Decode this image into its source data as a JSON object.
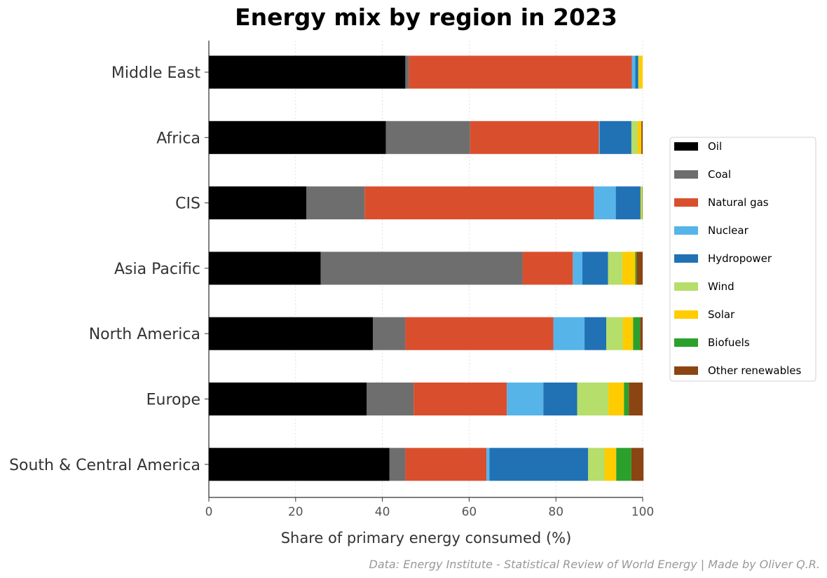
{
  "chart_data": {
    "type": "bar",
    "orientation": "horizontal",
    "stacked": true,
    "title": "Energy mix by region in 2023",
    "xlabel": "Share of primary energy consumed (%)",
    "ylabel": "",
    "xlim": [
      0,
      100
    ],
    "xticks": [
      0,
      20,
      40,
      60,
      80,
      100
    ],
    "grid": "vertical dotted",
    "legend_position": "right",
    "source_note": "Data: Energy Institute - Statistical Review of World Energy | Made by Oliver Q.R.",
    "categories": [
      "Middle East",
      "Africa",
      "CIS",
      "Asia Pacific",
      "North America",
      "Europe",
      "South & Central America"
    ],
    "series": [
      {
        "name": "Oil",
        "color": "#000000",
        "values": [
          45.3,
          40.8,
          22.5,
          25.8,
          37.8,
          36.4,
          41.6
        ]
      },
      {
        "name": "Coal",
        "color": "#6e6e6e",
        "values": [
          0.8,
          19.4,
          13.4,
          46.5,
          7.5,
          10.8,
          3.7
        ]
      },
      {
        "name": "Natural gas",
        "color": "#d94f2e",
        "values": [
          51.4,
          29.7,
          52.9,
          11.6,
          34.1,
          21.5,
          18.7
        ]
      },
      {
        "name": "Nuclear",
        "color": "#56b4e9",
        "values": [
          0.8,
          0.2,
          5.0,
          2.2,
          7.2,
          8.4,
          0.7
        ]
      },
      {
        "name": "Hydropower",
        "color": "#2171b5",
        "values": [
          0.7,
          7.3,
          5.7,
          5.9,
          5.0,
          7.8,
          22.7
        ]
      },
      {
        "name": "Wind",
        "color": "#b5de6b",
        "values": [
          0.1,
          1.4,
          0.2,
          3.3,
          3.8,
          7.2,
          3.8
        ]
      },
      {
        "name": "Solar",
        "color": "#ffcc00",
        "values": [
          0.9,
          0.9,
          0.2,
          3.0,
          2.4,
          3.6,
          2.7
        ]
      },
      {
        "name": "Biofuels",
        "color": "#2ca02c",
        "values": [
          0.0,
          0.0,
          0.1,
          0.3,
          1.6,
          1.1,
          3.5
        ]
      },
      {
        "name": "Other renewables",
        "color": "#8b4513",
        "values": [
          0.0,
          0.3,
          0.0,
          1.4,
          0.6,
          3.2,
          2.8
        ]
      }
    ]
  }
}
